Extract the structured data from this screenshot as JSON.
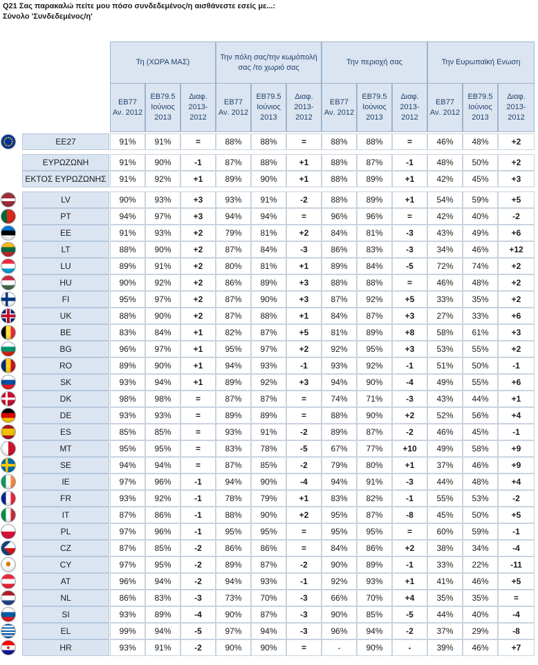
{
  "title": "Q21 Σας παρακαλώ πείτε μου πόσο συνδεδεμένος/η αισθάνεστε εσείς με...:",
  "subtitle": "Σύνολο 'Συνδεδεμένος/η'",
  "groups": [
    {
      "label": "Τη (ΧΩΡΑ ΜΑΣ)"
    },
    {
      "label": "Την πόλη σας/την κωμόπολή σας /το χωριό σας"
    },
    {
      "label": "Την περιοχή σας"
    },
    {
      "label": "Την Ευρωπαϊκή Ενωση"
    }
  ],
  "subheaders": [
    "EB77 Αν. 2012",
    "EB79.5 Ιούνιος 2013",
    "Διαφ. 2013-2012"
  ],
  "rows": [
    {
      "label": "EE27",
      "flag": "eu",
      "values": [
        "91%",
        "91%",
        "=",
        "88%",
        "88%",
        "=",
        "88%",
        "88%",
        "=",
        "46%",
        "48%",
        "+2"
      ]
    },
    {
      "label": "ΕΥΡΩΖΩΝΗ",
      "flag": "",
      "values": [
        "91%",
        "90%",
        "-1",
        "87%",
        "88%",
        "+1",
        "88%",
        "87%",
        "-1",
        "48%",
        "50%",
        "+2"
      ]
    },
    {
      "label": "ΕΚΤΟΣ ΕΥΡΩΖΩΝΗΣ",
      "flag": "",
      "values": [
        "91%",
        "92%",
        "+1",
        "89%",
        "90%",
        "+1",
        "88%",
        "89%",
        "+1",
        "42%",
        "45%",
        "+3"
      ]
    },
    {
      "label": "LV",
      "flag": "lv",
      "values": [
        "90%",
        "93%",
        "+3",
        "93%",
        "91%",
        "-2",
        "88%",
        "89%",
        "+1",
        "54%",
        "59%",
        "+5"
      ]
    },
    {
      "label": "PT",
      "flag": "pt",
      "values": [
        "94%",
        "97%",
        "+3",
        "94%",
        "94%",
        "=",
        "96%",
        "96%",
        "=",
        "42%",
        "40%",
        "-2"
      ]
    },
    {
      "label": "EE",
      "flag": "ee",
      "values": [
        "91%",
        "93%",
        "+2",
        "79%",
        "81%",
        "+2",
        "84%",
        "81%",
        "-3",
        "43%",
        "49%",
        "+6"
      ]
    },
    {
      "label": "LT",
      "flag": "lt",
      "values": [
        "88%",
        "90%",
        "+2",
        "87%",
        "84%",
        "-3",
        "86%",
        "83%",
        "-3",
        "34%",
        "46%",
        "+12"
      ]
    },
    {
      "label": "LU",
      "flag": "lu",
      "values": [
        "89%",
        "91%",
        "+2",
        "80%",
        "81%",
        "+1",
        "89%",
        "84%",
        "-5",
        "72%",
        "74%",
        "+2"
      ]
    },
    {
      "label": "HU",
      "flag": "hu",
      "values": [
        "90%",
        "92%",
        "+2",
        "86%",
        "89%",
        "+3",
        "88%",
        "88%",
        "=",
        "46%",
        "48%",
        "+2"
      ]
    },
    {
      "label": "FI",
      "flag": "fi",
      "values": [
        "95%",
        "97%",
        "+2",
        "87%",
        "90%",
        "+3",
        "87%",
        "92%",
        "+5",
        "33%",
        "35%",
        "+2"
      ]
    },
    {
      "label": "UK",
      "flag": "uk",
      "values": [
        "88%",
        "90%",
        "+2",
        "87%",
        "88%",
        "+1",
        "84%",
        "87%",
        "+3",
        "27%",
        "33%",
        "+6"
      ]
    },
    {
      "label": "BE",
      "flag": "be",
      "values": [
        "83%",
        "84%",
        "+1",
        "82%",
        "87%",
        "+5",
        "81%",
        "89%",
        "+8",
        "58%",
        "61%",
        "+3"
      ]
    },
    {
      "label": "BG",
      "flag": "bg",
      "values": [
        "96%",
        "97%",
        "+1",
        "95%",
        "97%",
        "+2",
        "92%",
        "95%",
        "+3",
        "53%",
        "55%",
        "+2"
      ]
    },
    {
      "label": "RO",
      "flag": "ro",
      "values": [
        "89%",
        "90%",
        "+1",
        "94%",
        "93%",
        "-1",
        "93%",
        "92%",
        "-1",
        "51%",
        "50%",
        "-1"
      ]
    },
    {
      "label": "SK",
      "flag": "sk",
      "values": [
        "93%",
        "94%",
        "+1",
        "89%",
        "92%",
        "+3",
        "94%",
        "90%",
        "-4",
        "49%",
        "55%",
        "+6"
      ]
    },
    {
      "label": "DK",
      "flag": "dk",
      "values": [
        "98%",
        "98%",
        "=",
        "87%",
        "87%",
        "=",
        "74%",
        "71%",
        "-3",
        "43%",
        "44%",
        "+1"
      ]
    },
    {
      "label": "DE",
      "flag": "de",
      "values": [
        "93%",
        "93%",
        "=",
        "89%",
        "89%",
        "=",
        "88%",
        "90%",
        "+2",
        "52%",
        "56%",
        "+4"
      ]
    },
    {
      "label": "ES",
      "flag": "es",
      "values": [
        "85%",
        "85%",
        "=",
        "93%",
        "91%",
        "-2",
        "89%",
        "87%",
        "-2",
        "46%",
        "45%",
        "-1"
      ]
    },
    {
      "label": "MT",
      "flag": "mt",
      "values": [
        "95%",
        "95%",
        "=",
        "83%",
        "78%",
        "-5",
        "67%",
        "77%",
        "+10",
        "49%",
        "58%",
        "+9"
      ]
    },
    {
      "label": "SE",
      "flag": "se",
      "values": [
        "94%",
        "94%",
        "=",
        "87%",
        "85%",
        "-2",
        "79%",
        "80%",
        "+1",
        "37%",
        "46%",
        "+9"
      ]
    },
    {
      "label": "IE",
      "flag": "ie",
      "values": [
        "97%",
        "96%",
        "-1",
        "94%",
        "90%",
        "-4",
        "94%",
        "91%",
        "-3",
        "44%",
        "48%",
        "+4"
      ]
    },
    {
      "label": "FR",
      "flag": "fr",
      "values": [
        "93%",
        "92%",
        "-1",
        "78%",
        "79%",
        "+1",
        "83%",
        "82%",
        "-1",
        "55%",
        "53%",
        "-2"
      ]
    },
    {
      "label": "IT",
      "flag": "it",
      "values": [
        "87%",
        "86%",
        "-1",
        "88%",
        "90%",
        "+2",
        "95%",
        "87%",
        "-8",
        "45%",
        "50%",
        "+5"
      ]
    },
    {
      "label": "PL",
      "flag": "pl",
      "values": [
        "97%",
        "96%",
        "-1",
        "95%",
        "95%",
        "=",
        "95%",
        "95%",
        "=",
        "60%",
        "59%",
        "-1"
      ]
    },
    {
      "label": "CZ",
      "flag": "cz",
      "values": [
        "87%",
        "85%",
        "-2",
        "86%",
        "86%",
        "=",
        "84%",
        "86%",
        "+2",
        "38%",
        "34%",
        "-4"
      ]
    },
    {
      "label": "CY",
      "flag": "cy",
      "values": [
        "97%",
        "95%",
        "-2",
        "89%",
        "87%",
        "-2",
        "90%",
        "89%",
        "-1",
        "33%",
        "22%",
        "-11"
      ]
    },
    {
      "label": "AT",
      "flag": "at",
      "values": [
        "96%",
        "94%",
        "-2",
        "94%",
        "93%",
        "-1",
        "92%",
        "93%",
        "+1",
        "41%",
        "46%",
        "+5"
      ]
    },
    {
      "label": "NL",
      "flag": "nl",
      "values": [
        "86%",
        "83%",
        "-3",
        "73%",
        "70%",
        "-3",
        "66%",
        "70%",
        "+4",
        "35%",
        "35%",
        "="
      ]
    },
    {
      "label": "SI",
      "flag": "si",
      "values": [
        "93%",
        "89%",
        "-4",
        "90%",
        "87%",
        "-3",
        "90%",
        "85%",
        "-5",
        "44%",
        "40%",
        "-4"
      ]
    },
    {
      "label": "EL",
      "flag": "el",
      "values": [
        "99%",
        "94%",
        "-5",
        "97%",
        "94%",
        "-3",
        "96%",
        "94%",
        "-2",
        "37%",
        "29%",
        "-8"
      ]
    },
    {
      "label": "HR",
      "flag": "hr",
      "values": [
        "93%",
        "91%",
        "-2",
        "90%",
        "90%",
        "=",
        "-",
        "90%",
        "-",
        "39%",
        "46%",
        "+7"
      ]
    }
  ]
}
